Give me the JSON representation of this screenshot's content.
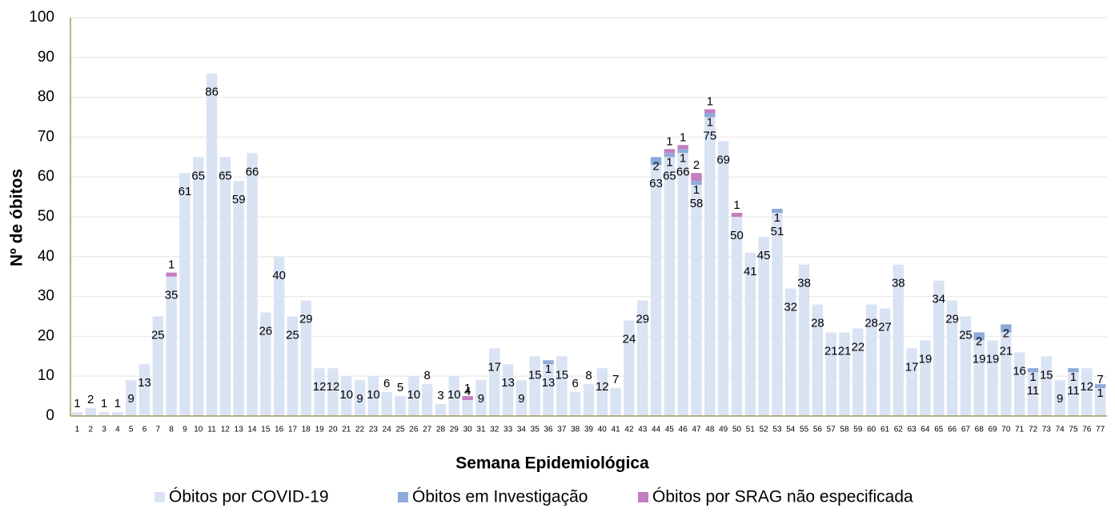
{
  "chart_data": {
    "type": "stacked_bar",
    "x_label": "Semana Epidemiológica",
    "y_label": "Nº de óbitos",
    "categories": [
      "1",
      "2",
      "3",
      "4",
      "5",
      "6",
      "7",
      "8",
      "9",
      "10",
      "11",
      "12",
      "13",
      "14",
      "15",
      "16",
      "17",
      "18",
      "19",
      "20",
      "21",
      "22",
      "23",
      "24",
      "25",
      "26",
      "27",
      "28",
      "29",
      "30",
      "31",
      "32",
      "33",
      "34",
      "35",
      "36",
      "37",
      "38",
      "39",
      "40",
      "41",
      "42",
      "43",
      "44",
      "45",
      "46",
      "47",
      "48",
      "49",
      "50",
      "51",
      "52",
      "53",
      "54",
      "55",
      "56",
      "57",
      "58",
      "59",
      "60",
      "61",
      "62",
      "63",
      "64",
      "65",
      "66",
      "67",
      "68",
      "69",
      "70",
      "71",
      "72",
      "73",
      "74",
      "75",
      "76",
      "77"
    ],
    "series": [
      {
        "name": "Óbitos por COVID-19",
        "color": "#dae3f3",
        "values": [
          1,
          2,
          1,
          1,
          9,
          13,
          25,
          35,
          61,
          65,
          86,
          65,
          59,
          66,
          26,
          40,
          25,
          29,
          12,
          12,
          10,
          9,
          10,
          6,
          5,
          10,
          8,
          3,
          10,
          4,
          9,
          17,
          13,
          9,
          15,
          13,
          15,
          6,
          8,
          12,
          7,
          24,
          29,
          63,
          65,
          66,
          58,
          75,
          69,
          50,
          41,
          45,
          51,
          32,
          38,
          28,
          21,
          21,
          22,
          28,
          27,
          38,
          17,
          19,
          34,
          29,
          25,
          19,
          19,
          21,
          16,
          11,
          15,
          9,
          11,
          12,
          7
        ]
      },
      {
        "name": "Óbitos em Investigação",
        "color": "#8eaadb",
        "values": [
          null,
          null,
          null,
          null,
          null,
          null,
          null,
          null,
          null,
          null,
          null,
          null,
          null,
          null,
          null,
          null,
          null,
          null,
          null,
          null,
          null,
          null,
          null,
          null,
          null,
          null,
          null,
          null,
          null,
          null,
          null,
          null,
          null,
          null,
          null,
          1,
          null,
          null,
          null,
          null,
          null,
          null,
          null,
          2,
          1,
          1,
          1,
          1,
          null,
          null,
          null,
          null,
          1,
          null,
          null,
          null,
          null,
          null,
          null,
          null,
          null,
          null,
          null,
          null,
          null,
          null,
          null,
          2,
          null,
          2,
          null,
          1,
          null,
          null,
          1,
          null,
          1
        ]
      },
      {
        "name": "Óbitos por SRAG não especificada",
        "color": "#c27fc2",
        "values": [
          null,
          null,
          null,
          null,
          null,
          null,
          null,
          1,
          null,
          null,
          null,
          null,
          null,
          null,
          null,
          null,
          null,
          null,
          null,
          null,
          null,
          null,
          null,
          null,
          null,
          null,
          null,
          null,
          null,
          1,
          null,
          null,
          null,
          null,
          null,
          null,
          null,
          null,
          null,
          null,
          null,
          null,
          null,
          null,
          1,
          1,
          2,
          1,
          null,
          1,
          null,
          null,
          null,
          null,
          null,
          null,
          null,
          null,
          null,
          null,
          null,
          null,
          null,
          null,
          null,
          null,
          null,
          null,
          null,
          null,
          null,
          null,
          null,
          null,
          null,
          null,
          null
        ]
      }
    ],
    "ylim": [
      0,
      100
    ],
    "yticks": [
      0,
      10,
      20,
      30,
      40,
      50,
      60,
      70,
      80,
      90,
      100
    ],
    "grid": true,
    "legend": "bottom"
  }
}
